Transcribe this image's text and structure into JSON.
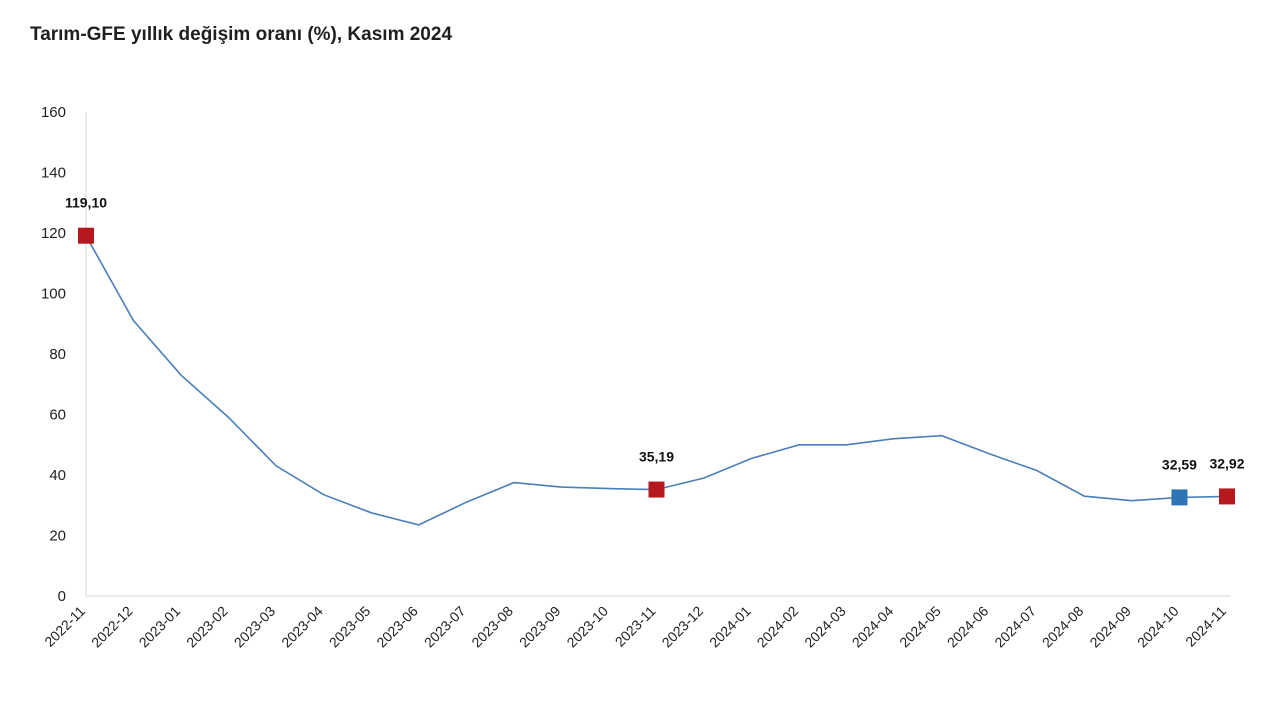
{
  "title": "Tarım-GFE yıllık değişim oranı (%), Kasım 2024",
  "chart_data": {
    "type": "line",
    "title": "Tarım-GFE yıllık değişim oranı (%), Kasım 2024",
    "xlabel": "",
    "ylabel": "",
    "ylim": [
      0,
      160
    ],
    "yticks": [
      0,
      20,
      40,
      60,
      80,
      100,
      120,
      140,
      160
    ],
    "grid": false,
    "legend": "none",
    "categories": [
      "2022-11",
      "2022-12",
      "2023-01",
      "2023-02",
      "2023-03",
      "2023-04",
      "2023-05",
      "2023-06",
      "2023-07",
      "2023-08",
      "2023-09",
      "2023-10",
      "2023-11",
      "2023-12",
      "2024-01",
      "2024-02",
      "2024-03",
      "2024-04",
      "2024-05",
      "2024-06",
      "2024-07",
      "2024-08",
      "2024-09",
      "2024-10",
      "2024-11"
    ],
    "series": [
      {
        "values": [
          119.1,
          91,
          73,
          59,
          43,
          33.5,
          27.5,
          23.5,
          31,
          37.5,
          36,
          35.5,
          35.19,
          39,
          45.5,
          50,
          50,
          52,
          53,
          47,
          41.5,
          33,
          31.5,
          32.59,
          32.92
        ],
        "color": "#4a7fb8"
      }
    ],
    "highlighted_points": [
      {
        "category": "2022-11",
        "value": 119.1,
        "label": "119,10",
        "color": "#b5191e"
      },
      {
        "category": "2023-11",
        "value": 35.19,
        "label": "35,19",
        "color": "#b5191e"
      },
      {
        "category": "2024-10",
        "value": 32.59,
        "label": "32,59",
        "color": "#2e75b6"
      },
      {
        "category": "2024-11",
        "value": 32.92,
        "label": "32,92",
        "color": "#b5191e"
      }
    ],
    "axis_color": "#d9d9d9"
  }
}
